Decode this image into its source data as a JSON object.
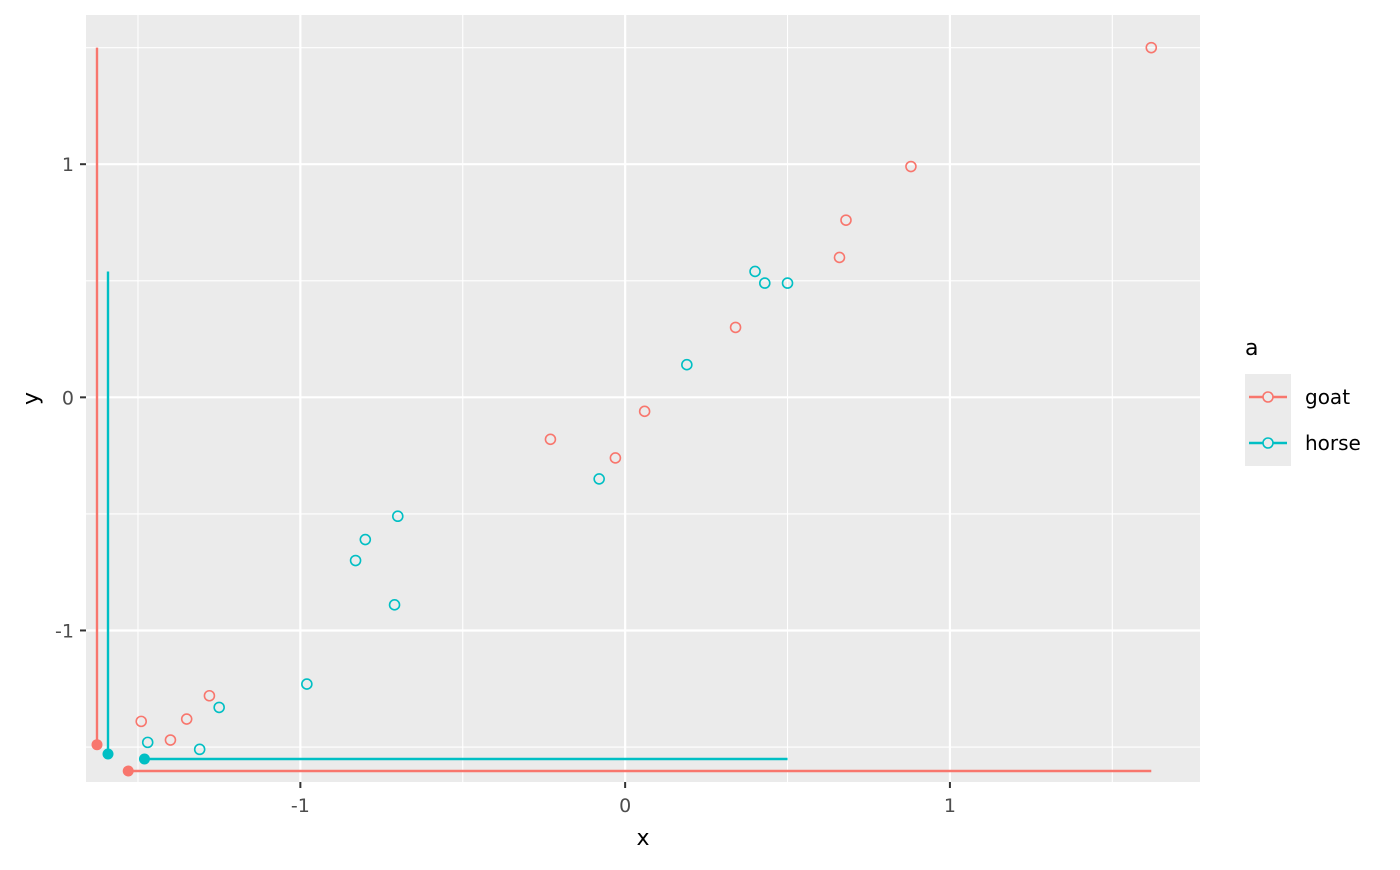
{
  "chart_data": {
    "type": "scatter",
    "title": "",
    "xlabel": "x",
    "ylabel": "y",
    "xlim": [
      -1.66,
      1.77
    ],
    "ylim": [
      -1.65,
      1.64
    ],
    "x_ticks": [
      -1,
      0,
      1
    ],
    "x_tick_labels": [
      "-1",
      "0",
      "1"
    ],
    "y_ticks": [
      -1,
      0,
      1
    ],
    "y_tick_labels": [
      "-1",
      "0",
      "1"
    ],
    "x_minor_ticks": [
      -1.5,
      -0.5,
      0.5,
      1.5
    ],
    "y_minor_ticks": [
      -1.5,
      -0.5,
      0.5,
      1.5
    ],
    "grid": true,
    "legend": {
      "title": "a",
      "position": "right",
      "entries": [
        "goat",
        "horse"
      ]
    },
    "colors": {
      "goat": "#F8766D",
      "horse": "#00BFC4",
      "panel": "#EBEBEB",
      "grid": "#FFFFFF",
      "text_axis": "#4D4D4D",
      "text_title": "#000000"
    },
    "series": [
      {
        "name": "goat",
        "points": [
          [
            1.62,
            1.5
          ],
          [
            0.88,
            0.99
          ],
          [
            0.68,
            0.76
          ],
          [
            0.66,
            0.6
          ],
          [
            0.34,
            0.3
          ],
          [
            0.06,
            -0.06
          ],
          [
            -0.03,
            -0.26
          ],
          [
            -0.23,
            -0.18
          ],
          [
            -1.28,
            -1.28
          ],
          [
            -1.35,
            -1.38
          ],
          [
            -1.49,
            -1.39
          ],
          [
            -1.4,
            -1.47
          ]
        ],
        "range_x": [
          -1.53,
          1.62
        ],
        "range_y": [
          -1.49,
          1.5
        ]
      },
      {
        "name": "horse",
        "points": [
          [
            0.4,
            0.54
          ],
          [
            0.43,
            0.49
          ],
          [
            0.5,
            0.49
          ],
          [
            0.19,
            0.14
          ],
          [
            -0.08,
            -0.35
          ],
          [
            -0.7,
            -0.51
          ],
          [
            -0.8,
            -0.61
          ],
          [
            -0.83,
            -0.7
          ],
          [
            -0.71,
            -0.89
          ],
          [
            -0.98,
            -1.23
          ],
          [
            -1.25,
            -1.33
          ],
          [
            -1.47,
            -1.48
          ],
          [
            -1.31,
            -1.51
          ]
        ],
        "range_x": [
          -1.48,
          0.5
        ],
        "range_y": [
          -1.53,
          0.54
        ]
      }
    ]
  }
}
